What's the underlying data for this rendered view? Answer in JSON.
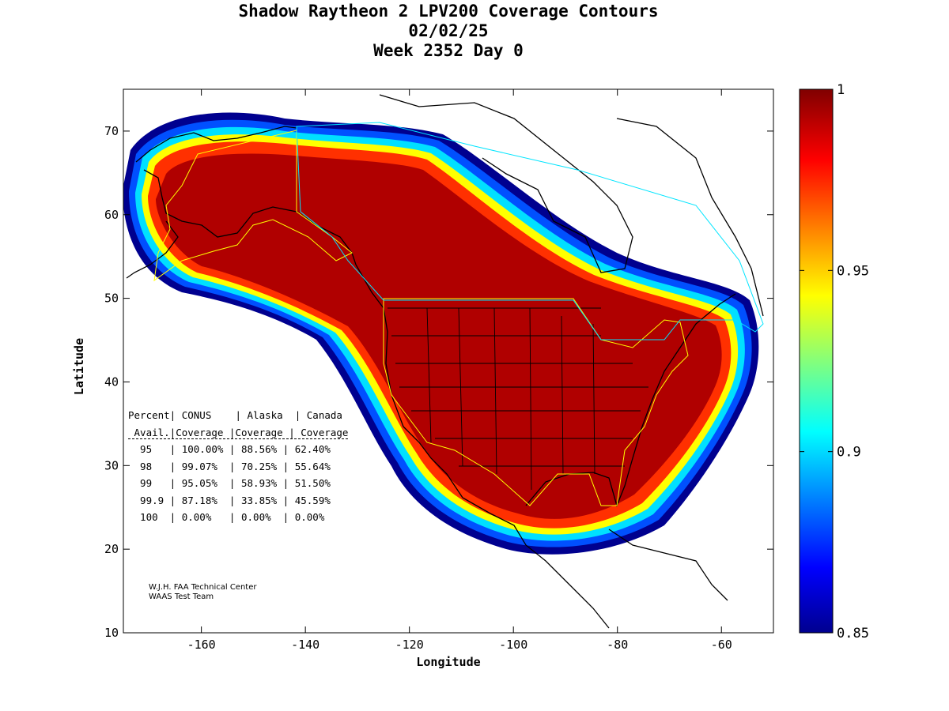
{
  "title": {
    "line1": "Shadow Raytheon 2 LPV200 Coverage Contours",
    "line2": "02/02/25",
    "line3": "Week 2352 Day 0"
  },
  "axes": {
    "xlabel": "Longitude",
    "ylabel": "Latitude",
    "x_ticks": [
      "-160",
      "-140",
      "-120",
      "-100",
      "-80",
      "-60"
    ],
    "y_ticks": [
      "10",
      "20",
      "30",
      "40",
      "50",
      "60",
      "70"
    ],
    "xlim": [
      -175,
      -50
    ],
    "ylim": [
      10,
      75
    ]
  },
  "colorbar": {
    "ticks": [
      "0.85",
      "0.9",
      "0.95",
      "1"
    ],
    "range": [
      0.85,
      1
    ]
  },
  "stats_table": {
    "header1": [
      "Percent",
      "CONUS",
      "Alaska",
      "Canada"
    ],
    "header2": [
      "Avail.",
      "Coverage",
      "Coverage",
      "Coverage"
    ],
    "rows": [
      [
        "95",
        "100.00%",
        "88.56%",
        "62.40%"
      ],
      [
        "98",
        "99.07%",
        "70.25%",
        "55.64%"
      ],
      [
        "99",
        "95.05%",
        "58.93%",
        "51.50%"
      ],
      [
        "99.9",
        "87.18%",
        "33.85%",
        "45.59%"
      ],
      [
        "100",
        "0.00%",
        "0.00%",
        "0.00%"
      ]
    ]
  },
  "credit": {
    "line1": "W.J.H. FAA Technical Center",
    "line2": "WAAS Test Team"
  }
}
